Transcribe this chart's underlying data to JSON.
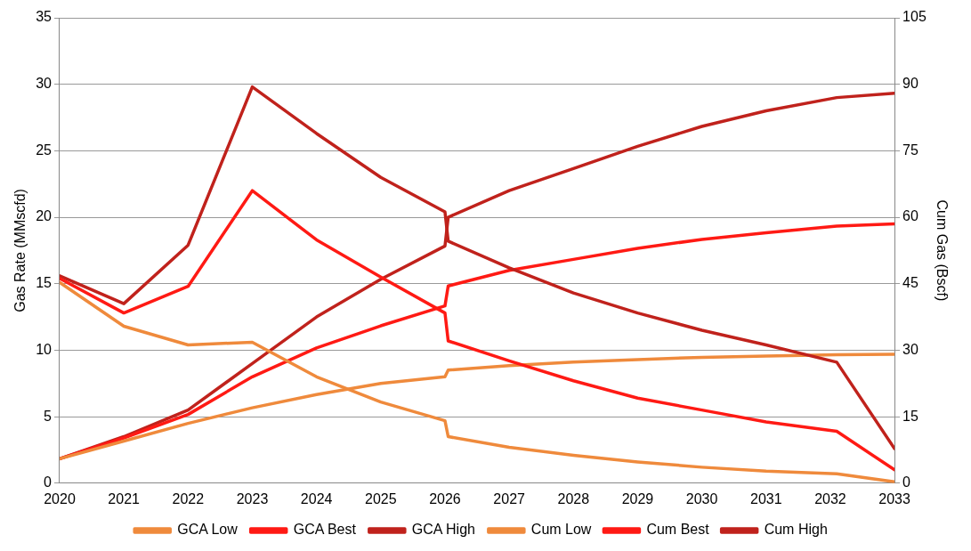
{
  "chart_data": {
    "type": "line",
    "ylabel": "Gas Rate (MMscfd)",
    "y2label": "Cum Gas (Bscf)",
    "x": [
      2020,
      2021,
      2022,
      2023,
      2024,
      2025,
      2026,
      2026.05,
      2027,
      2028,
      2029,
      2030,
      2031,
      2032.1,
      2033
    ],
    "xlim": [
      2020,
      2033
    ],
    "xticks": [
      2020,
      2021,
      2022,
      2023,
      2024,
      2025,
      2026,
      2027,
      2028,
      2029,
      2030,
      2031,
      2032,
      2033
    ],
    "ylim": [
      0,
      35
    ],
    "yticks": [
      0,
      5,
      10,
      15,
      20,
      25,
      30,
      35
    ],
    "y2lim": [
      0,
      105
    ],
    "y2ticks": [
      0,
      15,
      30,
      45,
      60,
      75,
      90,
      105
    ],
    "grid": "y",
    "legend": "bottom",
    "marker": "none",
    "line_style": "solid",
    "series": [
      {
        "name": "GCA Low",
        "color": "#ef8a3c",
        "values": [
          15.1,
          11.8,
          10.4,
          10.6,
          8.0,
          6.1,
          4.7,
          3.5,
          2.7,
          2.1,
          1.6,
          1.2,
          0.9,
          0.7,
          0.1
        ]
      },
      {
        "name": "GCA Best",
        "color": "#ff1a14",
        "values": [
          15.4,
          12.8,
          14.8,
          22.0,
          18.3,
          15.5,
          12.8,
          10.7,
          9.2,
          7.7,
          6.4,
          5.5,
          4.6,
          3.9,
          1.0
        ]
      },
      {
        "name": "GCA High",
        "color": "#c0221c",
        "values": [
          15.6,
          13.5,
          17.9,
          29.8,
          26.3,
          23.0,
          20.4,
          18.2,
          16.2,
          14.3,
          12.8,
          11.5,
          10.4,
          9.1,
          2.6
        ]
      },
      {
        "name": "Cum Low",
        "color": "#ef8a3c",
        "axis": "y2",
        "values": [
          5.5,
          9.5,
          13.5,
          17,
          20,
          22.5,
          24,
          25.5,
          26.5,
          27.3,
          27.9,
          28.4,
          28.7,
          29,
          29.1
        ]
      },
      {
        "name": "Cum Best",
        "color": "#ff1a14",
        "axis": "y2",
        "values": [
          5.5,
          10.2,
          15.5,
          24,
          30.5,
          35.5,
          40,
          44.5,
          48,
          50.5,
          53,
          55,
          56.5,
          58,
          58.5
        ]
      },
      {
        "name": "Cum High",
        "color": "#c0221c",
        "axis": "y2",
        "values": [
          5.5,
          10.5,
          16.5,
          27,
          37.5,
          46,
          53.5,
          60,
          66,
          71,
          76,
          80.5,
          84,
          87,
          88
        ]
      }
    ]
  }
}
